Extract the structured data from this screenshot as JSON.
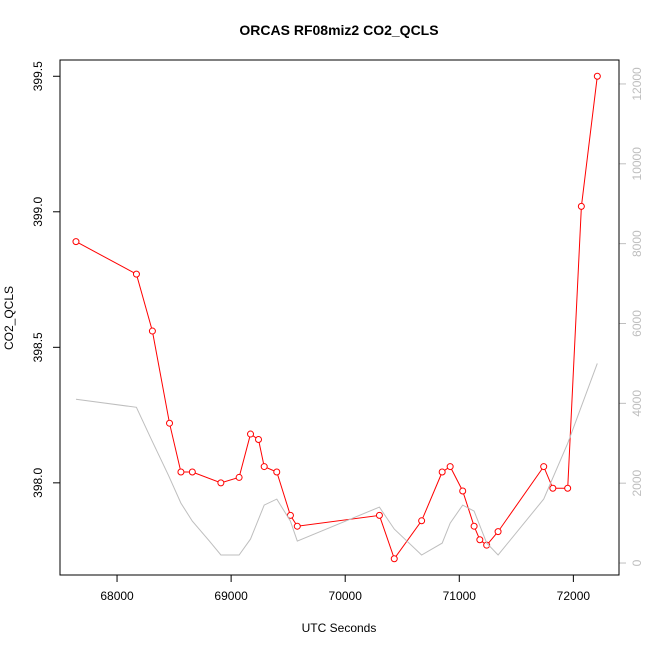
{
  "chart_data": {
    "type": "line",
    "title": "ORCAS RF08miz2 CO2_QCLS",
    "xlabel": "UTC Seconds",
    "ylabel": "CO2_QCLS",
    "xlim": [
      67500,
      72400
    ],
    "ylim": [
      397.66,
      399.56
    ],
    "y2lim": [
      -300,
      12600
    ],
    "x_ticks": [
      68000,
      69000,
      70000,
      71000,
      72000
    ],
    "y_ticks": [
      398.0,
      398.5,
      399.0,
      399.5
    ],
    "y2_ticks": [
      0,
      2000,
      4000,
      6000,
      8000,
      10000,
      12000
    ],
    "x_tick_labels": [
      "68000",
      "69000",
      "70000",
      "71000",
      "72000"
    ],
    "y_tick_labels": [
      "398.0",
      "398.5",
      "399.0",
      "399.5"
    ],
    "y2_tick_labels": [
      "0",
      "2000",
      "4000",
      "6000",
      "8000",
      "10000",
      "12000"
    ],
    "series": [
      {
        "axis": "left",
        "color": "#ff0000",
        "marker": "open-circle",
        "x": [
          67640,
          68170,
          68310,
          68460,
          68560,
          68660,
          68910,
          69070,
          69170,
          69240,
          69290,
          69400,
          69520,
          69580,
          70300,
          70430,
          70670,
          70850,
          70920,
          71030,
          71130,
          71180,
          71240,
          71340,
          71740,
          71820,
          71950,
          72070,
          72210
        ],
        "y": [
          398.89,
          398.77,
          398.56,
          398.22,
          398.04,
          398.04,
          398.0,
          398.02,
          398.18,
          398.16,
          398.06,
          398.04,
          397.88,
          397.84,
          397.88,
          397.72,
          397.86,
          398.04,
          398.06,
          397.97,
          397.84,
          397.79,
          397.77,
          397.82,
          398.06,
          397.98,
          397.98,
          399.02,
          399.5
        ]
      },
      {
        "axis": "right",
        "color": "#bebebe",
        "marker": "none",
        "x": [
          67640,
          68170,
          68300,
          68450,
          68560,
          68660,
          68810,
          68910,
          69070,
          69170,
          69290,
          69400,
          69520,
          69580,
          70300,
          70430,
          70670,
          70850,
          70920,
          71030,
          71130,
          71240,
          71340,
          71740,
          71950,
          72210
        ],
        "y": [
          4100,
          3900,
          3100,
          2200,
          1500,
          1050,
          550,
          200,
          200,
          600,
          1450,
          1600,
          1050,
          550,
          1400,
          850,
          200,
          500,
          1000,
          1450,
          1300,
          500,
          200,
          1600,
          3000,
          5000
        ]
      }
    ]
  }
}
